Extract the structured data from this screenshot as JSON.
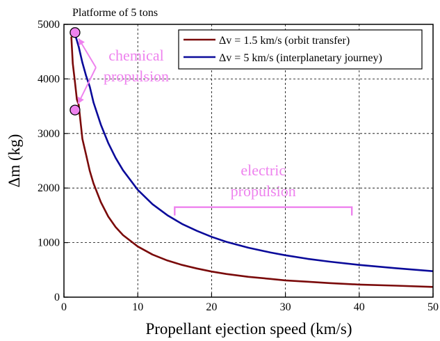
{
  "chart_data": {
    "type": "line",
    "title": "Platforme of 5 tons",
    "xlabel": "Propellant ejection speed (km/s)",
    "ylabel": "Δm (kg)",
    "xlim": [
      0,
      50
    ],
    "ylim": [
      0,
      5000
    ],
    "x_ticks": [
      0,
      10,
      20,
      30,
      40,
      50
    ],
    "y_ticks": [
      0,
      1000,
      2000,
      3000,
      4000,
      5000
    ],
    "grid": true,
    "legend_position": "top-right",
    "series": [
      {
        "name": "Δv = 1.5 km/s (orbit transfer)",
        "color": "#7a0a0a",
        "dv_kms": 1.5,
        "x": [
          1.0,
          1.2,
          1.5,
          1.75,
          2,
          2.5,
          3,
          3.5,
          4,
          5,
          6,
          7,
          8,
          10,
          12,
          14,
          16,
          18,
          20,
          22,
          25,
          28,
          30,
          33,
          36,
          40,
          45,
          50
        ],
        "values": [
          4777,
          4283,
          3935,
          3623,
          3528,
          2903,
          2607,
          2311,
          2085,
          1741,
          1478,
          1285,
          1136,
          928,
          781,
          672,
          591,
          526,
          470,
          425,
          373,
          334,
          307,
          283,
          258,
          231,
          210,
          187
        ]
      },
      {
        "name": "Δv = 5 km/s (interplanetary journey)",
        "color": "#0a0a9a",
        "dv_kms": 5,
        "x": [
          1.5,
          2,
          2.5,
          3,
          3.5,
          4,
          5,
          6,
          7,
          8,
          10,
          12,
          14,
          16,
          18,
          20,
          22,
          25,
          28,
          30,
          33,
          36,
          40,
          45,
          50
        ],
        "values": [
          4822,
          4590,
          4300,
          4055,
          3855,
          3570,
          3161,
          2826,
          2553,
          2325,
          1967,
          1704,
          1502,
          1342,
          1215,
          1106,
          1014,
          905,
          818,
          768,
          703,
          651,
          590,
          530,
          476
        ]
      }
    ],
    "annotations": [
      {
        "text": "chemical\npropulsion",
        "color": "#ee82ee"
      },
      {
        "text": "electric\npropulsion",
        "color": "#ee82ee",
        "bracket_x": [
          15,
          39
        ],
        "bracket_y": 1650
      }
    ],
    "markers": [
      {
        "x": 1.5,
        "y": 3430,
        "color": "#ee82ee"
      },
      {
        "x": 1.5,
        "y": 4850,
        "color": "#ee82ee"
      }
    ]
  }
}
